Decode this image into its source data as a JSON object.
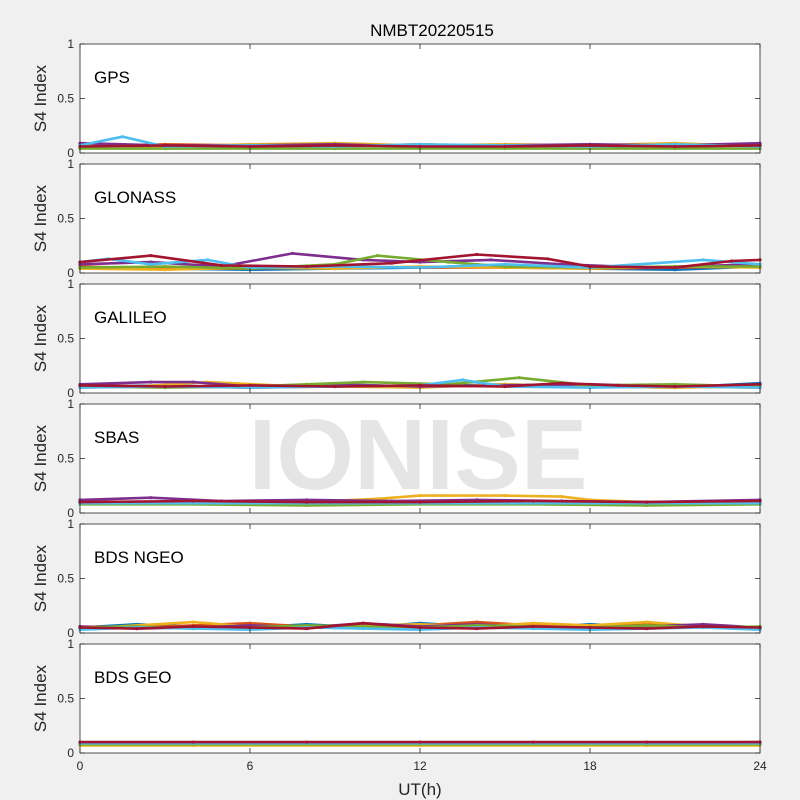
{
  "figure": {
    "title": "NMBT20220515",
    "xlabel": "UT(h)",
    "watermark": "IONISE"
  },
  "colors": {
    "background": "#f0f0f0",
    "axes_bg": "#ffffff",
    "axes_edge": "#262626",
    "series": [
      "#0072bd",
      "#d95319",
      "#edb120",
      "#7e2f8e",
      "#77ac30",
      "#4dbeee",
      "#a2142f"
    ]
  },
  "chart_data": [
    {
      "type": "scatter",
      "label": "GPS",
      "ylabel": "S4 Index",
      "xlim": [
        0,
        24
      ],
      "ylim": [
        0,
        1
      ],
      "xticks": [
        0,
        6,
        12,
        18,
        24
      ],
      "yticks": [
        0,
        0.5,
        1
      ],
      "ytick_labels": [
        "0",
        "0.5",
        "1"
      ],
      "series": [
        {
          "x": [
            0,
            3,
            6,
            9,
            12,
            15,
            18,
            21,
            24
          ],
          "y": [
            0.08,
            0.07,
            0.06,
            0.08,
            0.06,
            0.07,
            0.06,
            0.07,
            0.08
          ]
        },
        {
          "x": [
            0,
            3,
            6,
            9,
            12,
            15,
            18,
            21,
            24
          ],
          "y": [
            0.06,
            0.08,
            0.07,
            0.06,
            0.08,
            0.06,
            0.08,
            0.06,
            0.07
          ]
        },
        {
          "x": [
            0,
            3,
            6,
            9,
            12,
            15,
            18,
            21,
            24
          ],
          "y": [
            0.07,
            0.06,
            0.08,
            0.09,
            0.07,
            0.08,
            0.07,
            0.09,
            0.06
          ]
        },
        {
          "x": [
            0,
            3,
            6,
            9,
            12,
            15,
            18,
            21,
            24
          ],
          "y": [
            0.09,
            0.07,
            0.07,
            0.08,
            0.06,
            0.07,
            0.08,
            0.07,
            0.09
          ]
        },
        {
          "x": [
            0,
            3,
            6,
            9,
            12,
            15,
            18,
            21,
            24
          ],
          "y": [
            0.04,
            0.04,
            0.04,
            0.04,
            0.04,
            0.04,
            0.04,
            0.04,
            0.04
          ]
        },
        {
          "x": [
            0,
            1.5,
            3,
            6,
            9,
            12,
            15,
            18,
            21,
            24
          ],
          "y": [
            0.07,
            0.15,
            0.06,
            0.07,
            0.06,
            0.08,
            0.07,
            0.06,
            0.08,
            0.06
          ]
        },
        {
          "x": [
            0,
            3,
            6,
            9,
            12,
            15,
            18,
            21,
            24
          ],
          "y": [
            0.06,
            0.07,
            0.06,
            0.07,
            0.06,
            0.06,
            0.07,
            0.06,
            0.07
          ]
        }
      ]
    },
    {
      "type": "scatter",
      "label": "GLONASS",
      "ylabel": "S4 Index",
      "xlim": [
        0,
        24
      ],
      "ylim": [
        0,
        1
      ],
      "xticks": [
        0,
        6,
        12,
        18,
        24
      ],
      "yticks": [
        0,
        0.5,
        1
      ],
      "ytick_labels": [
        "0",
        "0.5",
        "1"
      ],
      "series": [
        {
          "x": [
            0,
            3,
            6,
            9,
            12,
            15,
            18,
            21,
            24
          ],
          "y": [
            0.05,
            0.04,
            0.03,
            0.04,
            0.05,
            0.06,
            0.04,
            0.03,
            0.06
          ]
        },
        {
          "x": [
            0,
            3,
            6,
            9,
            12,
            15,
            18,
            21,
            24
          ],
          "y": [
            0.06,
            0.04,
            0.04,
            0.06,
            0.05,
            0.05,
            0.04,
            0.05,
            0.06
          ]
        },
        {
          "x": [
            0,
            3,
            6,
            9,
            12,
            15,
            18,
            21,
            24
          ],
          "y": [
            0.04,
            0.03,
            0.05,
            0.04,
            0.06,
            0.05,
            0.04,
            0.06,
            0.05
          ]
        },
        {
          "x": [
            0,
            2.5,
            5,
            7.5,
            10,
            12,
            14.5,
            17,
            20,
            24
          ],
          "y": [
            0.08,
            0.1,
            0.06,
            0.18,
            0.12,
            0.1,
            0.12,
            0.08,
            0.05,
            0.08
          ]
        },
        {
          "x": [
            0,
            3,
            6,
            9,
            10.5,
            13,
            15,
            18,
            21,
            24
          ],
          "y": [
            0.05,
            0.06,
            0.04,
            0.08,
            0.16,
            0.1,
            0.06,
            0.05,
            0.06,
            0.06
          ]
        },
        {
          "x": [
            0,
            1,
            2.5,
            4.5,
            6,
            9,
            12,
            15,
            18,
            22,
            24
          ],
          "y": [
            0.1,
            0.13,
            0.08,
            0.12,
            0.05,
            0.06,
            0.05,
            0.08,
            0.05,
            0.12,
            0.08
          ]
        },
        {
          "x": [
            0,
            2.5,
            5,
            8,
            11,
            14,
            16.5,
            18,
            21,
            23,
            24
          ],
          "y": [
            0.1,
            0.16,
            0.07,
            0.06,
            0.09,
            0.17,
            0.13,
            0.06,
            0.05,
            0.11,
            0.12
          ]
        }
      ]
    },
    {
      "type": "scatter",
      "label": "GALILEO",
      "ylabel": "S4 Index",
      "xlim": [
        0,
        24
      ],
      "ylim": [
        0,
        1
      ],
      "xticks": [
        0,
        6,
        12,
        18,
        24
      ],
      "yticks": [
        0,
        0.5,
        1
      ],
      "ytick_labels": [
        "0",
        "0.5",
        "1"
      ],
      "series": [
        {
          "x": [
            0,
            3,
            6,
            9,
            12,
            15,
            18,
            21,
            24
          ],
          "y": [
            0.06,
            0.07,
            0.05,
            0.07,
            0.06,
            0.08,
            0.06,
            0.05,
            0.09
          ]
        },
        {
          "x": [
            0,
            3,
            6,
            9,
            12,
            15,
            18,
            21,
            24
          ],
          "y": [
            0.07,
            0.06,
            0.05,
            0.06,
            0.07,
            0.06,
            0.07,
            0.06,
            0.05
          ]
        },
        {
          "x": [
            0,
            2,
            4.5,
            7,
            9,
            12,
            15,
            18,
            21,
            24
          ],
          "y": [
            0.05,
            0.06,
            0.1,
            0.07,
            0.06,
            0.05,
            0.08,
            0.06,
            0.05,
            0.06
          ]
        },
        {
          "x": [
            0,
            2.5,
            4,
            6,
            9,
            12,
            15,
            18,
            21,
            24
          ],
          "y": [
            0.08,
            0.1,
            0.1,
            0.06,
            0.08,
            0.06,
            0.07,
            0.08,
            0.06,
            0.07
          ]
        },
        {
          "x": [
            0,
            3,
            6,
            8,
            10,
            13,
            15.5,
            18,
            21,
            24
          ],
          "y": [
            0.06,
            0.05,
            0.06,
            0.08,
            0.1,
            0.08,
            0.14,
            0.07,
            0.08,
            0.06
          ]
        },
        {
          "x": [
            0,
            3,
            6,
            9,
            12,
            13.5,
            15,
            18,
            21,
            24
          ],
          "y": [
            0.05,
            0.06,
            0.05,
            0.06,
            0.07,
            0.12,
            0.06,
            0.05,
            0.06,
            0.05
          ]
        },
        {
          "x": [
            0,
            3,
            6,
            9,
            12,
            15,
            17,
            19,
            21,
            24
          ],
          "y": [
            0.07,
            0.06,
            0.07,
            0.06,
            0.07,
            0.06,
            0.09,
            0.07,
            0.06,
            0.08
          ]
        }
      ]
    },
    {
      "type": "scatter",
      "label": "SBAS",
      "ylabel": "S4 Index",
      "xlim": [
        0,
        24
      ],
      "ylim": [
        0,
        1
      ],
      "xticks": [
        0,
        6,
        12,
        18,
        24
      ],
      "yticks": [
        0,
        0.5,
        1
      ],
      "ytick_labels": [
        "0",
        "0.5",
        "1"
      ],
      "series": [
        {
          "x": [
            0,
            4,
            8,
            12,
            16,
            20,
            24
          ],
          "y": [
            0.09,
            0.09,
            0.09,
            0.09,
            0.09,
            0.09,
            0.09
          ]
        },
        {
          "x": [
            0,
            4,
            8,
            12,
            16,
            20,
            24
          ],
          "y": [
            0.1,
            0.1,
            0.1,
            0.1,
            0.1,
            0.1,
            0.1
          ]
        },
        {
          "x": [
            0,
            4,
            8,
            10.5,
            12,
            15,
            17,
            18,
            20,
            24
          ],
          "y": [
            0.1,
            0.1,
            0.1,
            0.13,
            0.16,
            0.16,
            0.15,
            0.12,
            0.1,
            0.1
          ]
        },
        {
          "x": [
            0,
            2.5,
            5,
            8,
            11,
            14,
            17,
            20,
            24
          ],
          "y": [
            0.12,
            0.14,
            0.11,
            0.12,
            0.11,
            0.12,
            0.11,
            0.1,
            0.12
          ]
        },
        {
          "x": [
            0,
            4,
            8,
            12,
            16,
            20,
            24
          ],
          "y": [
            0.08,
            0.08,
            0.07,
            0.08,
            0.08,
            0.07,
            0.08
          ]
        },
        {
          "x": [
            0,
            4,
            8,
            12,
            16,
            20,
            24
          ],
          "y": [
            0.09,
            0.09,
            0.09,
            0.09,
            0.09,
            0.09,
            0.09
          ]
        },
        {
          "x": [
            0,
            4,
            8,
            12,
            16,
            20,
            24
          ],
          "y": [
            0.1,
            0.11,
            0.1,
            0.1,
            0.11,
            0.1,
            0.11
          ]
        }
      ]
    },
    {
      "type": "scatter",
      "label": "BDS NGEO",
      "ylabel": "S4 Index",
      "xlim": [
        0,
        24
      ],
      "ylim": [
        0,
        1
      ],
      "xticks": [
        0,
        6,
        12,
        18,
        24
      ],
      "yticks": [
        0,
        0.5,
        1
      ],
      "ytick_labels": [
        "0",
        "0.5",
        "1"
      ],
      "series": [
        {
          "x": [
            0,
            2,
            4,
            6,
            8,
            10,
            12,
            14,
            16,
            18,
            20,
            22,
            24
          ],
          "y": [
            0.05,
            0.08,
            0.06,
            0.05,
            0.08,
            0.05,
            0.09,
            0.06,
            0.05,
            0.08,
            0.06,
            0.05,
            0.04
          ]
        },
        {
          "x": [
            0,
            2,
            4,
            6,
            8,
            10,
            12,
            14,
            16,
            18,
            20,
            22,
            24
          ],
          "y": [
            0.06,
            0.05,
            0.07,
            0.09,
            0.06,
            0.08,
            0.07,
            0.1,
            0.07,
            0.06,
            0.09,
            0.06,
            0.05
          ]
        },
        {
          "x": [
            0,
            2,
            4,
            6,
            8,
            10,
            12,
            14,
            16,
            18,
            20,
            22,
            24
          ],
          "y": [
            0.04,
            0.07,
            0.1,
            0.06,
            0.05,
            0.07,
            0.08,
            0.06,
            0.09,
            0.07,
            0.1,
            0.06,
            0.04
          ]
        },
        {
          "x": [
            0,
            2,
            4,
            6,
            8,
            10,
            12,
            14,
            16,
            18,
            20,
            22,
            24
          ],
          "y": [
            0.06,
            0.04,
            0.05,
            0.07,
            0.05,
            0.09,
            0.06,
            0.08,
            0.05,
            0.04,
            0.06,
            0.08,
            0.05
          ]
        },
        {
          "x": [
            0,
            2,
            4,
            6,
            8,
            10,
            12,
            14,
            16,
            18,
            20,
            22,
            24
          ],
          "y": [
            0.05,
            0.06,
            0.04,
            0.05,
            0.07,
            0.06,
            0.05,
            0.07,
            0.06,
            0.05,
            0.07,
            0.05,
            0.06
          ]
        },
        {
          "x": [
            0,
            2,
            4,
            6,
            8,
            10,
            12,
            14,
            16,
            18,
            20,
            22,
            24
          ],
          "y": [
            0.03,
            0.05,
            0.04,
            0.03,
            0.05,
            0.04,
            0.03,
            0.05,
            0.04,
            0.03,
            0.04,
            0.05,
            0.03
          ]
        },
        {
          "x": [
            0,
            2,
            4,
            6,
            8,
            10,
            12,
            14,
            16,
            18,
            20,
            22,
            24
          ],
          "y": [
            0.05,
            0.04,
            0.06,
            0.05,
            0.04,
            0.09,
            0.05,
            0.04,
            0.06,
            0.05,
            0.04,
            0.06,
            0.05
          ]
        }
      ]
    },
    {
      "type": "scatter",
      "label": "BDS GEO",
      "ylabel": "S4 Index",
      "xlim": [
        0,
        24
      ],
      "ylim": [
        0,
        1
      ],
      "xticks": [
        0,
        6,
        12,
        18,
        24
      ],
      "yticks": [
        0,
        0.5,
        1
      ],
      "ytick_labels": [
        "0",
        "0.5",
        "1"
      ],
      "series": [
        {
          "x": [
            0,
            4,
            8,
            12,
            16,
            20,
            24
          ],
          "y": [
            0.08,
            0.08,
            0.08,
            0.08,
            0.08,
            0.08,
            0.08
          ]
        },
        {
          "x": [
            0,
            4,
            8,
            12,
            16,
            20,
            24
          ],
          "y": [
            0.09,
            0.09,
            0.09,
            0.09,
            0.09,
            0.09,
            0.1
          ]
        },
        {
          "x": [
            0,
            4,
            8,
            12,
            16,
            20,
            24
          ],
          "y": [
            0.07,
            0.07,
            0.07,
            0.07,
            0.07,
            0.07,
            0.07
          ]
        },
        {
          "x": [
            0,
            4,
            8,
            12,
            16,
            20,
            24
          ],
          "y": [
            0.09,
            0.09,
            0.09,
            0.09,
            0.09,
            0.09,
            0.09
          ]
        },
        {
          "x": [
            0,
            4,
            8,
            12,
            16,
            20,
            24
          ],
          "y": [
            0.08,
            0.08,
            0.08,
            0.08,
            0.08,
            0.08,
            0.08
          ]
        },
        {
          "x": [
            0,
            4,
            8,
            12,
            16,
            20,
            24
          ],
          "y": [
            0.09,
            0.09,
            0.09,
            0.09,
            0.09,
            0.09,
            0.09
          ]
        },
        {
          "x": [
            0,
            4,
            8,
            12,
            16,
            20,
            24
          ],
          "y": [
            0.1,
            0.1,
            0.1,
            0.1,
            0.1,
            0.1,
            0.1
          ]
        }
      ]
    }
  ]
}
